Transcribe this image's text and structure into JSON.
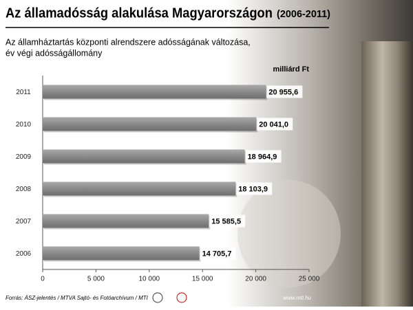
{
  "chart_data": {
    "type": "bar",
    "orientation": "horizontal",
    "title": "Az államadósság alakulása Magyarországon",
    "title_period": "(2006-2011)",
    "subtitle_lines": [
      "Az államháztartás központi alrendszere adósságának változása,",
      "év végi adósságállomány"
    ],
    "unit": "milliárd Ft",
    "categories": [
      "2011",
      "2010",
      "2009",
      "2008",
      "2007",
      "2006"
    ],
    "values": [
      20955.6,
      20041.0,
      18964.9,
      18103.9,
      15585.5,
      14705.7
    ],
    "value_labels": [
      "20 955,6",
      "20 041,0",
      "18 964,9",
      "18 103,9",
      "15 585,5",
      "14 705,7"
    ],
    "color": "#8c8c8c",
    "xlim": [
      0,
      25000
    ],
    "xticks": [
      0,
      {
        "value": 5000,
        "label": "5 000"
      },
      {
        "value": 10000,
        "label": "10 000"
      },
      {
        "value": 15000,
        "label": "15 000"
      },
      {
        "value": 20000,
        "label": "20 000"
      },
      {
        "value": 25000,
        "label": "25 000"
      }
    ],
    "source": "Forrás: ÁSZ-jelentés / MTVA Sajtó- és Fotóarchívum / MTI",
    "website": "www.mti.hu"
  }
}
